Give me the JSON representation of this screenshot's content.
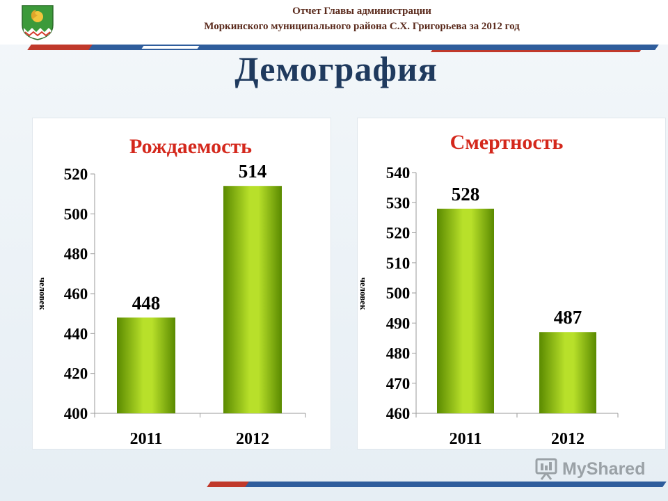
{
  "header": {
    "line1": "Отчет Главы администрации",
    "line2": "Моркинского муниципального района С.Х. Григорьева за 2012 год"
  },
  "page_title": "Демография",
  "watermark": {
    "text": "MyShared"
  },
  "colors": {
    "bar_dark": "#5a8a00",
    "bar_light": "#b8e02a",
    "title_red": "#d4281c",
    "header_navy": "#1f3a5e",
    "band_blue": "#2f5d9c",
    "band_red": "#c0392b"
  },
  "chart_data": [
    {
      "type": "bar",
      "title": "Рождаемость",
      "ylabel": "человек",
      "categories": [
        "2011",
        "2012"
      ],
      "values": [
        448,
        514
      ],
      "ylim": [
        400,
        520
      ],
      "yticks": [
        "400",
        "420",
        "440",
        "460",
        "480",
        "500",
        "520"
      ],
      "value_labels": [
        "448",
        "514"
      ],
      "grid": false
    },
    {
      "type": "bar",
      "title": "Смертность",
      "ylabel": "человек",
      "categories": [
        "2011",
        "2012"
      ],
      "values": [
        528,
        487
      ],
      "ylim": [
        460,
        540
      ],
      "yticks": [
        "460",
        "470",
        "480",
        "490",
        "500",
        "510",
        "520",
        "530",
        "540"
      ],
      "value_labels": [
        "528",
        "487"
      ],
      "grid": false
    }
  ]
}
